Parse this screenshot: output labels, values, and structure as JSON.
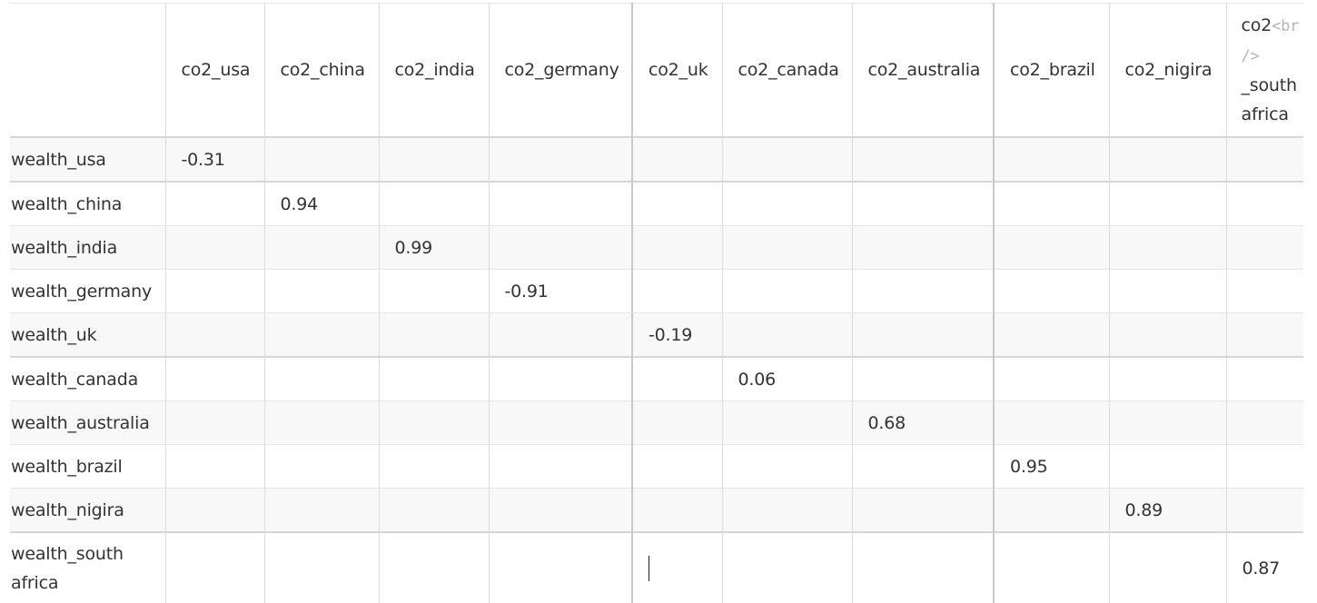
{
  "columns": [
    "co2_usa",
    "co2_china",
    "co2_india",
    "co2_germany",
    "co2_uk",
    "co2_canada",
    "co2_australia",
    "co2_brazil",
    "co2_nigira"
  ],
  "last_column": {
    "prefix": "co2",
    "tag_open": "<br",
    "tag_close": "/>",
    "suffix_1": "_south",
    "suffix_2": "africa"
  },
  "rows": [
    {
      "label": "wealth_usa",
      "value": "-0.31"
    },
    {
      "label": "wealth_china",
      "value": "0.94"
    },
    {
      "label": "wealth_india",
      "value": "0.99"
    },
    {
      "label": "wealth_germany",
      "value": "-0.91"
    },
    {
      "label": "wealth_uk",
      "value": "-0.19"
    },
    {
      "label": "wealth_canada",
      "value": "0.06"
    },
    {
      "label": "wealth_australia",
      "value": "0.68"
    },
    {
      "label": "wealth_brazil",
      "value": "0.95"
    },
    {
      "label": "wealth_nigira",
      "value": "0.89"
    },
    {
      "label_1": "wealth_south",
      "label_2": "africa",
      "value": "0.87"
    }
  ]
}
